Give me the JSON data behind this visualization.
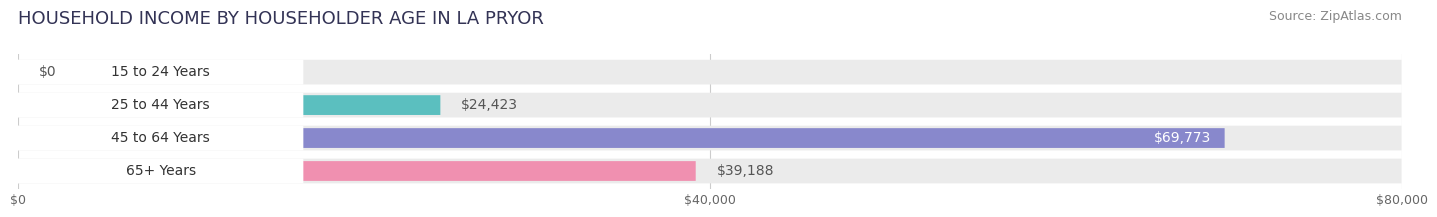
{
  "title": "HOUSEHOLD INCOME BY HOUSEHOLDER AGE IN LA PRYOR",
  "source": "Source: ZipAtlas.com",
  "categories": [
    "15 to 24 Years",
    "25 to 44 Years",
    "45 to 64 Years",
    "65+ Years"
  ],
  "values": [
    0,
    24423,
    69773,
    39188
  ],
  "value_labels": [
    "$0",
    "$24,423",
    "$69,773",
    "$39,188"
  ],
  "bar_colors": [
    "#c8a8cc",
    "#5bbfbf",
    "#8888cc",
    "#f090b0"
  ],
  "bar_bg_color": "#ebebeb",
  "label_box_color": "#ffffff",
  "xlim": [
    0,
    80000
  ],
  "xticks": [
    0,
    40000,
    80000
  ],
  "xtick_labels": [
    "$0",
    "$40,000",
    "$80,000"
  ],
  "title_fontsize": 13,
  "source_fontsize": 9,
  "label_fontsize": 10,
  "tick_fontsize": 9,
  "background_color": "#ffffff",
  "label_inside_threshold": 55000,
  "grid_color": "#cccccc"
}
